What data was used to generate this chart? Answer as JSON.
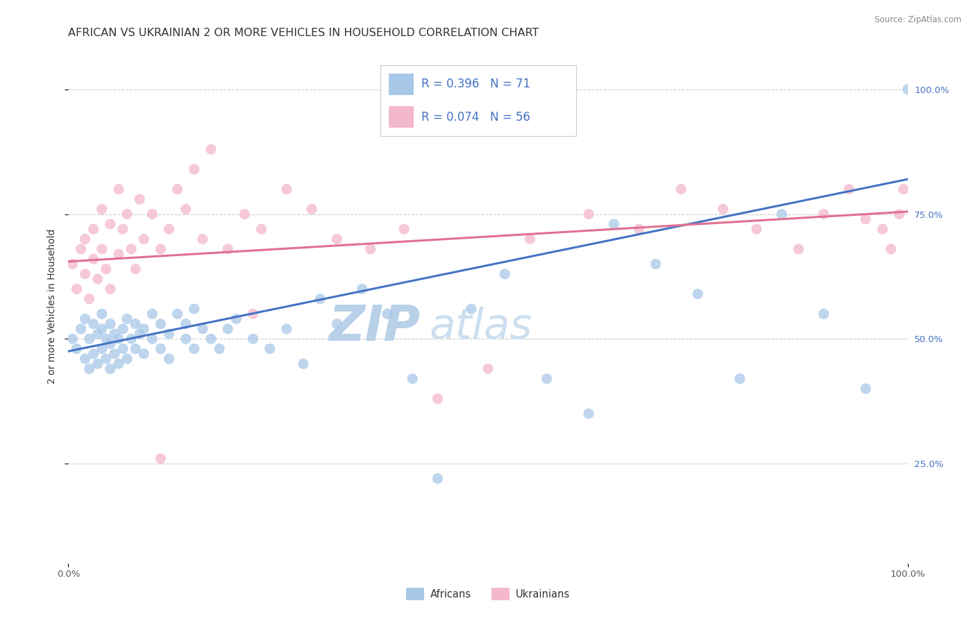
{
  "title": "AFRICAN VS UKRAINIAN 2 OR MORE VEHICLES IN HOUSEHOLD CORRELATION CHART",
  "source": "Source: ZipAtlas.com",
  "ylabel": "2 or more Vehicles in Household",
  "xlim": [
    0,
    1
  ],
  "ylim": [
    0.05,
    1.08
  ],
  "ytick_labels": [
    "25.0%",
    "50.0%",
    "75.0%",
    "100.0%"
  ],
  "ytick_positions": [
    0.25,
    0.5,
    0.75,
    1.0
  ],
  "xtick_positions": [
    0.0,
    1.0
  ],
  "xtick_labels": [
    "0.0%",
    "100.0%"
  ],
  "watermark_top": "ZIP",
  "watermark_bottom": "atlas",
  "blue_color": "#a8c8e8",
  "pink_color": "#f4b8cc",
  "blue_line_color": "#4472c4",
  "pink_line_color": "#e07090",
  "legend_blue_R": "R = 0.396",
  "legend_blue_N": "N = 71",
  "legend_pink_R": "R = 0.074",
  "legend_pink_N": "N = 56",
  "blue_points_x": [
    0.005,
    0.01,
    0.015,
    0.02,
    0.02,
    0.025,
    0.025,
    0.03,
    0.03,
    0.035,
    0.035,
    0.04,
    0.04,
    0.04,
    0.045,
    0.045,
    0.05,
    0.05,
    0.05,
    0.055,
    0.055,
    0.06,
    0.06,
    0.065,
    0.065,
    0.07,
    0.07,
    0.075,
    0.08,
    0.08,
    0.085,
    0.09,
    0.09,
    0.1,
    0.1,
    0.11,
    0.11,
    0.12,
    0.12,
    0.13,
    0.14,
    0.14,
    0.15,
    0.15,
    0.16,
    0.17,
    0.18,
    0.19,
    0.2,
    0.22,
    0.24,
    0.26,
    0.28,
    0.3,
    0.32,
    0.35,
    0.38,
    0.41,
    0.44,
    0.48,
    0.52,
    0.57,
    0.62,
    0.65,
    0.7,
    0.75,
    0.8,
    0.85,
    0.9,
    0.95,
    1.0
  ],
  "blue_points_y": [
    0.5,
    0.48,
    0.52,
    0.46,
    0.54,
    0.44,
    0.5,
    0.47,
    0.53,
    0.45,
    0.51,
    0.48,
    0.52,
    0.55,
    0.46,
    0.5,
    0.44,
    0.49,
    0.53,
    0.47,
    0.51,
    0.45,
    0.5,
    0.48,
    0.52,
    0.46,
    0.54,
    0.5,
    0.48,
    0.53,
    0.51,
    0.47,
    0.52,
    0.5,
    0.55,
    0.48,
    0.53,
    0.46,
    0.51,
    0.55,
    0.5,
    0.53,
    0.48,
    0.56,
    0.52,
    0.5,
    0.48,
    0.52,
    0.54,
    0.5,
    0.48,
    0.52,
    0.45,
    0.58,
    0.53,
    0.6,
    0.55,
    0.42,
    0.22,
    0.56,
    0.63,
    0.42,
    0.35,
    0.73,
    0.65,
    0.59,
    0.42,
    0.75,
    0.55,
    0.4,
    1.0
  ],
  "pink_points_x": [
    0.005,
    0.01,
    0.015,
    0.02,
    0.02,
    0.025,
    0.03,
    0.03,
    0.035,
    0.04,
    0.04,
    0.045,
    0.05,
    0.05,
    0.06,
    0.06,
    0.065,
    0.07,
    0.075,
    0.08,
    0.085,
    0.09,
    0.1,
    0.11,
    0.12,
    0.13,
    0.14,
    0.15,
    0.16,
    0.17,
    0.19,
    0.21,
    0.23,
    0.26,
    0.29,
    0.32,
    0.36,
    0.4,
    0.44,
    0.5,
    0.55,
    0.62,
    0.68,
    0.73,
    0.78,
    0.82,
    0.87,
    0.9,
    0.93,
    0.95,
    0.97,
    0.98,
    0.99,
    0.995,
    0.11,
    0.22
  ],
  "pink_points_y": [
    0.65,
    0.6,
    0.68,
    0.63,
    0.7,
    0.58,
    0.66,
    0.72,
    0.62,
    0.68,
    0.76,
    0.64,
    0.6,
    0.73,
    0.67,
    0.8,
    0.72,
    0.75,
    0.68,
    0.64,
    0.78,
    0.7,
    0.75,
    0.68,
    0.72,
    0.8,
    0.76,
    0.84,
    0.7,
    0.88,
    0.68,
    0.75,
    0.72,
    0.8,
    0.76,
    0.7,
    0.68,
    0.72,
    0.38,
    0.44,
    0.7,
    0.75,
    0.72,
    0.8,
    0.76,
    0.72,
    0.68,
    0.75,
    0.8,
    0.74,
    0.72,
    0.68,
    0.75,
    0.8,
    0.26,
    0.55
  ],
  "blue_trendline_x": [
    0.0,
    1.0
  ],
  "blue_trendline_y": [
    0.475,
    0.82
  ],
  "pink_trendline_x": [
    0.0,
    1.0
  ],
  "pink_trendline_y": [
    0.655,
    0.755
  ],
  "title_fontsize": 11.5,
  "axis_label_fontsize": 10,
  "tick_fontsize": 9.5,
  "legend_fontsize": 12,
  "watermark_fontsize": 52,
  "watermark_color": "#ccdff0",
  "background_color": "#ffffff",
  "grid_color": "#cccccc",
  "grid_style": "--",
  "scatter_size": 120,
  "scatter_alpha": 0.75
}
